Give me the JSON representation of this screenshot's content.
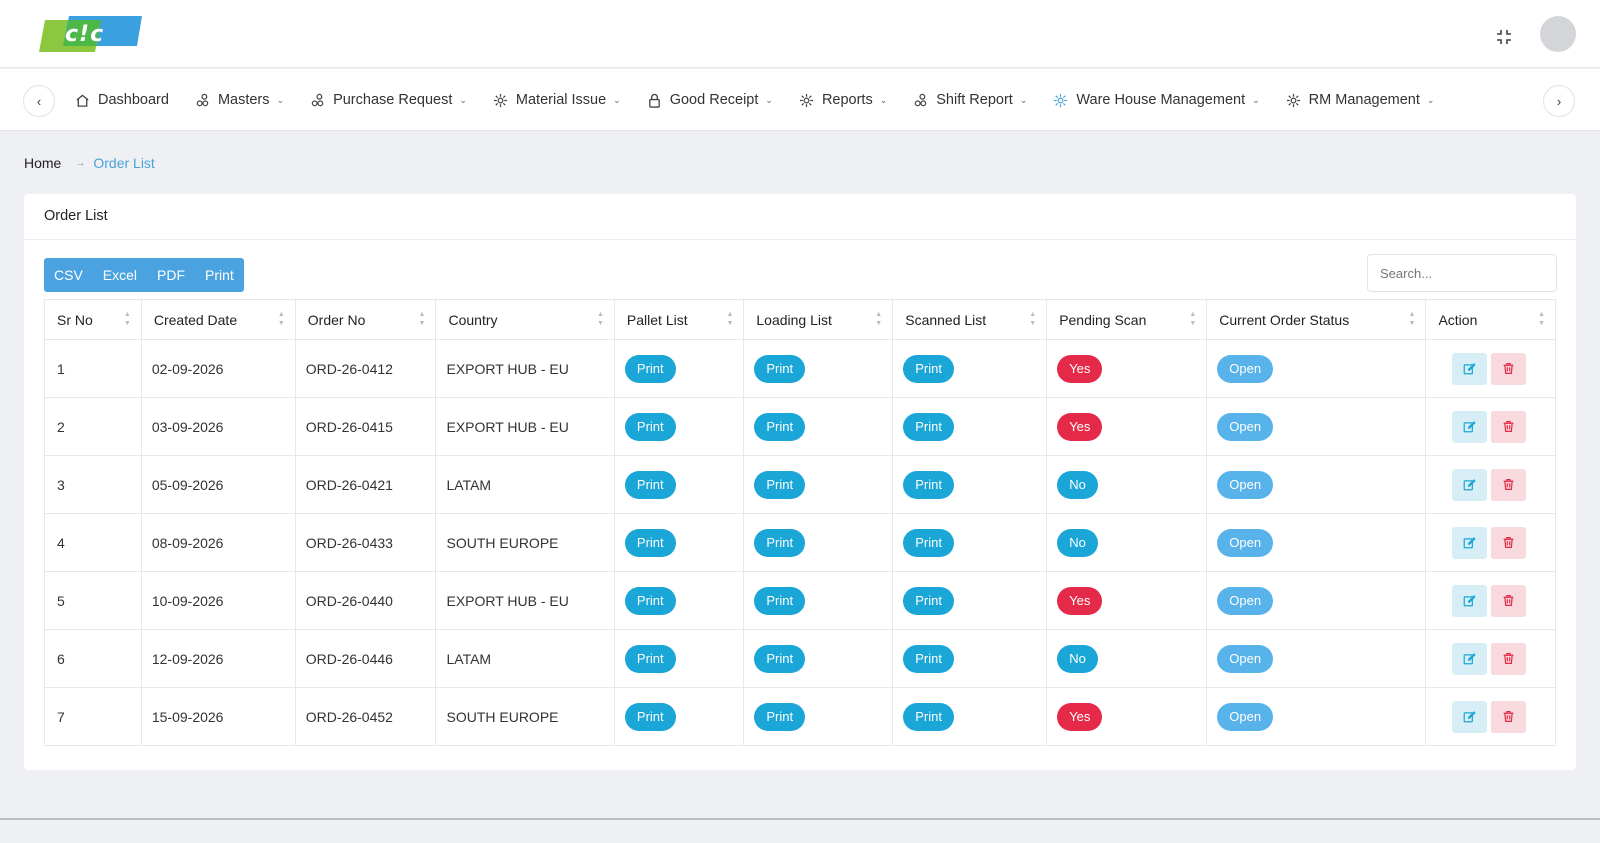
{
  "header": {
    "logo_text": "c!c"
  },
  "nav": {
    "items": [
      {
        "label": "Dashboard",
        "icon": "home-icon",
        "has_dropdown": false
      },
      {
        "label": "Masters",
        "icon": "nodes-icon",
        "has_dropdown": true
      },
      {
        "label": "Purchase Request",
        "icon": "nodes-icon",
        "has_dropdown": true
      },
      {
        "label": "Material Issue",
        "icon": "gear-icon",
        "has_dropdown": true
      },
      {
        "label": "Good Receipt",
        "icon": "lock-icon",
        "has_dropdown": true
      },
      {
        "label": "Reports",
        "icon": "gear-icon",
        "has_dropdown": true
      },
      {
        "label": "Shift Report",
        "icon": "nodes-icon",
        "has_dropdown": true
      },
      {
        "label": "Ware House Management",
        "icon": "gear-icon",
        "has_dropdown": true
      },
      {
        "label": "RM Management",
        "icon": "gear-icon",
        "has_dropdown": true
      }
    ]
  },
  "breadcrumb": {
    "home": "Home",
    "separator": "→",
    "current": "Order List"
  },
  "card": {
    "title": "Order List"
  },
  "export_buttons": [
    "CSV",
    "Excel",
    "PDF",
    "Print"
  ],
  "search": {
    "placeholder": "Search..."
  },
  "table": {
    "columns": [
      "Sr No",
      "Created Date",
      "Order No",
      "Country",
      "Pallet List",
      "Loading List",
      "Scanned List",
      "Pending Scan",
      "Current Order Status",
      "Action"
    ],
    "rows": [
      {
        "sr": "1",
        "date": "02-09-2026",
        "order": "ORD-26-0412",
        "country": "EXPORT HUB - EU",
        "pallet": "Print",
        "loading": "Print",
        "scanned": "Print",
        "pending": "Yes",
        "status": "Open"
      },
      {
        "sr": "2",
        "date": "03-09-2026",
        "order": "ORD-26-0415",
        "country": "EXPORT HUB - EU",
        "pallet": "Print",
        "loading": "Print",
        "scanned": "Print",
        "pending": "Yes",
        "status": "Open"
      },
      {
        "sr": "3",
        "date": "05-09-2026",
        "order": "ORD-26-0421",
        "country": "LATAM",
        "pallet": "Print",
        "loading": "Print",
        "scanned": "Print",
        "pending": "No",
        "status": "Open"
      },
      {
        "sr": "4",
        "date": "08-09-2026",
        "order": "ORD-26-0433",
        "country": "SOUTH EUROPE",
        "pallet": "Print",
        "loading": "Print",
        "scanned": "Print",
        "pending": "No",
        "status": "Open"
      },
      {
        "sr": "5",
        "date": "10-09-2026",
        "order": "ORD-26-0440",
        "country": "EXPORT HUB - EU",
        "pallet": "Print",
        "loading": "Print",
        "scanned": "Print",
        "pending": "Yes",
        "status": "Open"
      },
      {
        "sr": "6",
        "date": "12-09-2026",
        "order": "ORD-26-0446",
        "country": "LATAM",
        "pallet": "Print",
        "loading": "Print",
        "scanned": "Print",
        "pending": "No",
        "status": "Open"
      },
      {
        "sr": "7",
        "date": "15-09-2026",
        "order": "ORD-26-0452",
        "country": "SOUTH EUROPE",
        "pallet": "Print",
        "loading": "Print",
        "scanned": "Print",
        "pending": "Yes",
        "status": "Open"
      }
    ]
  },
  "colors": {
    "accent": "#4aa3e0",
    "print_badge": "#1aa6d6",
    "yes_badge": "#e42a48",
    "open_badge": "#58b3ea"
  }
}
